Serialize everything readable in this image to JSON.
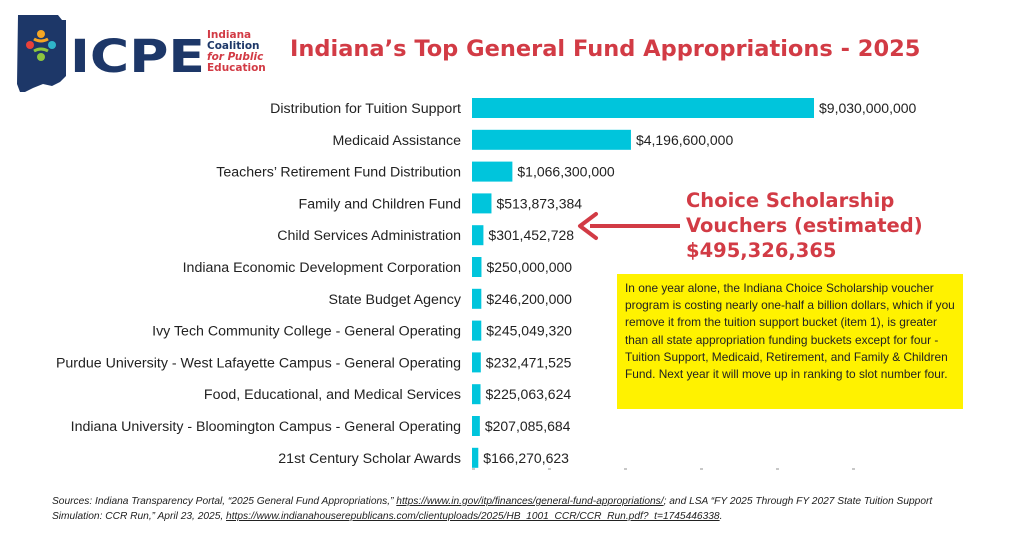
{
  "logo": {
    "acronym": "ICPE",
    "org_lines": [
      "Indiana",
      "Coalition",
      "for Public",
      "Education"
    ]
  },
  "title": "Indiana’s Top General Fund Appropriations - 2025",
  "chart_data": {
    "type": "bar",
    "orientation": "horizontal",
    "categories": [
      "Distribution for Tuition Support",
      "Medicaid Assistance",
      "Teachers’ Retirement Fund Distribution",
      "Family and Children Fund",
      "Child Services Administration",
      "Indiana Economic Development Corporation",
      "State Budget Agency",
      "Ivy Tech Community College - General Operating",
      "Purdue University - West Lafayette Campus - General Operating",
      "Food, Educational, and Medical Services",
      "Indiana University - Bloomington Campus - General Operating",
      "21st Century Scholar Awards"
    ],
    "values": [
      9030000000,
      4196600000,
      1066300000,
      513873384,
      301452728,
      250000000,
      246200000,
      245049320,
      232471525,
      225063624,
      207085684,
      166270623
    ],
    "value_labels": [
      "$9,030,000,000",
      "$4,196,600,000",
      "$1,066,300,000",
      "$513,873,384",
      "$301,452,728",
      "$250,000,000",
      "$246,200,000",
      "$245,049,320",
      "$232,471,525",
      "$225,063,624",
      "$207,085,684",
      "$166,270,623"
    ],
    "xlim": [
      0,
      9030000000
    ],
    "bar_color": "#00c5dc"
  },
  "callout": {
    "lines": [
      "Choice Scholarship",
      "Vouchers (estimated)",
      "$495,326,365"
    ],
    "color": "#d23b45"
  },
  "note": "In one year alone, the Indiana Choice Scholarship voucher program is costing nearly one-half a billion dollars, which if you remove it from the tuition support bucket (item 1), is greater than all state appropriation funding buckets except for four - Tuition Support, Medicaid, Retirement, and Family & Children Fund. Next year it will move up in ranking to slot number four.",
  "sources": {
    "t1": "Sources: Indiana Transparency Portal, “2025 General Fund Appropriations,” ",
    "link1": "https://www.in.gov/itp/finances/general-fund-appropriations/",
    "t2": "; and LSA “FY 2025 Through FY 2027 State Tuition Support Simulation: CCR Run,” April 23, 2025, ",
    "link2": "https://www.indianahouserepublicans.com/clientuploads/2025/HB_1001_CCR/CCR_Run.pdf?_t=1745446338",
    "t3": "."
  }
}
